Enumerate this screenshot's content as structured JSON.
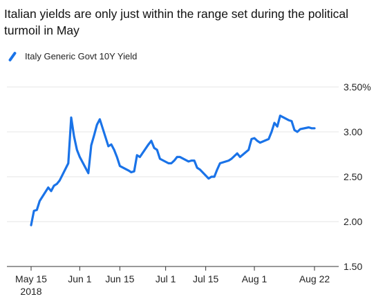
{
  "chart_data": {
    "type": "line",
    "title": "Italian yields are only just within the range set during the political turmoil in May",
    "legend": {
      "label": "Italy Generic Govt 10Y Yield",
      "position": "top-left"
    },
    "color": "#1a73e8",
    "ylim": [
      1.5,
      3.5
    ],
    "yticks": [
      "1.50",
      "2.00",
      "2.50",
      "3.00",
      "3.50%"
    ],
    "ytick_values": [
      1.5,
      2.0,
      2.5,
      3.0,
      3.5
    ],
    "xticks": [
      {
        "label": "May 15",
        "sublabel": "2018",
        "date": "2018-05-15"
      },
      {
        "label": "Jun 1",
        "sublabel": "",
        "date": "2018-06-01"
      },
      {
        "label": "Jun 15",
        "sublabel": "",
        "date": "2018-06-15"
      },
      {
        "label": "Jul 1",
        "sublabel": "",
        "date": "2018-07-01"
      },
      {
        "label": "Jul 15",
        "sublabel": "",
        "date": "2018-07-15"
      },
      {
        "label": "Aug 1",
        "sublabel": "",
        "date": "2018-08-01"
      },
      {
        "label": "Aug 22",
        "sublabel": "",
        "date": "2018-08-22"
      }
    ],
    "grid": true,
    "series": [
      {
        "name": "Italy Generic Govt 10Y Yield",
        "x": [
          "2018-05-15",
          "2018-05-16",
          "2018-05-17",
          "2018-05-18",
          "2018-05-21",
          "2018-05-22",
          "2018-05-23",
          "2018-05-24",
          "2018-05-25",
          "2018-05-28",
          "2018-05-29",
          "2018-05-30",
          "2018-05-31",
          "2018-06-01",
          "2018-06-04",
          "2018-06-05",
          "2018-06-06",
          "2018-06-07",
          "2018-06-08",
          "2018-06-11",
          "2018-06-12",
          "2018-06-13",
          "2018-06-14",
          "2018-06-15",
          "2018-06-18",
          "2018-06-19",
          "2018-06-20",
          "2018-06-21",
          "2018-06-22",
          "2018-06-25",
          "2018-06-26",
          "2018-06-27",
          "2018-06-28",
          "2018-06-29",
          "2018-07-02",
          "2018-07-03",
          "2018-07-04",
          "2018-07-05",
          "2018-07-06",
          "2018-07-09",
          "2018-07-10",
          "2018-07-11",
          "2018-07-12",
          "2018-07-13",
          "2018-07-16",
          "2018-07-17",
          "2018-07-18",
          "2018-07-19",
          "2018-07-20",
          "2018-07-23",
          "2018-07-24",
          "2018-07-25",
          "2018-07-26",
          "2018-07-27",
          "2018-07-30",
          "2018-07-31",
          "2018-08-01",
          "2018-08-02",
          "2018-08-03",
          "2018-08-06",
          "2018-08-07",
          "2018-08-08",
          "2018-08-09",
          "2018-08-10",
          "2018-08-13",
          "2018-08-14",
          "2018-08-15",
          "2018-08-16",
          "2018-08-17",
          "2018-08-20",
          "2018-08-21",
          "2018-08-22"
        ],
        "y": [
          1.96,
          2.12,
          2.13,
          2.23,
          2.38,
          2.34,
          2.4,
          2.42,
          2.46,
          2.65,
          3.16,
          2.95,
          2.8,
          2.72,
          2.54,
          2.85,
          2.96,
          3.08,
          3.14,
          2.84,
          2.86,
          2.8,
          2.72,
          2.62,
          2.57,
          2.55,
          2.56,
          2.74,
          2.72,
          2.86,
          2.9,
          2.82,
          2.8,
          2.7,
          2.65,
          2.65,
          2.68,
          2.72,
          2.72,
          2.67,
          2.68,
          2.68,
          2.6,
          2.58,
          2.48,
          2.5,
          2.5,
          2.58,
          2.65,
          2.68,
          2.7,
          2.73,
          2.76,
          2.72,
          2.8,
          2.92,
          2.93,
          2.9,
          2.88,
          2.92,
          3.0,
          3.1,
          3.06,
          3.18,
          3.13,
          3.12,
          3.02,
          3.0,
          3.03,
          3.05,
          3.04,
          3.04
        ]
      }
    ]
  }
}
